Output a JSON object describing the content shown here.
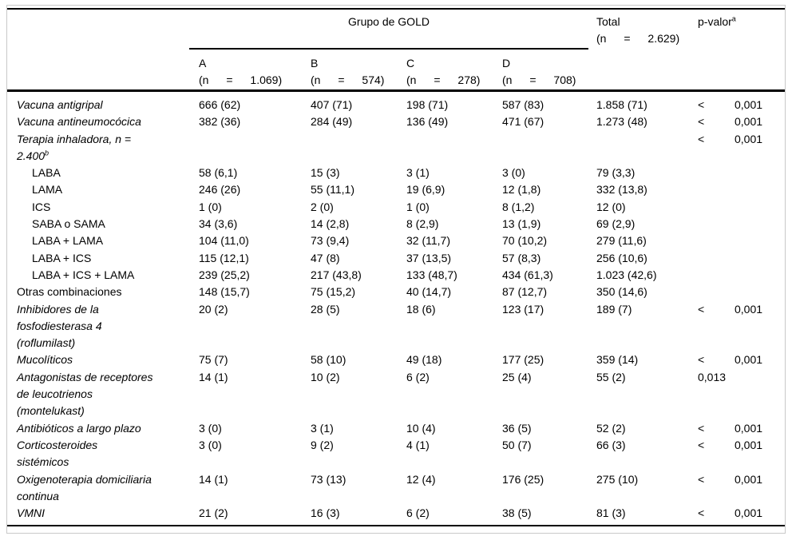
{
  "table": {
    "header": {
      "group_title": "Grupo de GOLD",
      "total_label": "Total",
      "total_n": "(n = 2.629)",
      "p_label": "p-valor",
      "p_sup": "a",
      "group_columns": [
        {
          "letter": "A",
          "n": "(n = 1.069)"
        },
        {
          "letter": "B",
          "n": "(n = 574)"
        },
        {
          "letter": "C",
          "n": "(n = 278)"
        },
        {
          "letter": "D",
          "n": "(n = 708)"
        }
      ]
    },
    "rows": [
      {
        "label": "Vacuna antigripal",
        "sup": "",
        "style": "italic",
        "group_a": "666 (62)",
        "group_b": "407 (71)",
        "group_c": "198 (71)",
        "group_d": "587 (83)",
        "total": "1.858 (71)",
        "p_sign": "<",
        "p_value": "0,001"
      },
      {
        "label": "Vacuna antineumocócica",
        "sup": "",
        "style": "italic",
        "group_a": "382 (36)",
        "group_b": "284 (49)",
        "group_c": "136 (49)",
        "group_d": "471 (67)",
        "total": "1.273 (48)",
        "p_sign": "<",
        "p_value": "0,001"
      },
      {
        "label": "Terapia inhaladora, n =\n2.400",
        "sup": "b",
        "style": "italic",
        "group_a": "",
        "group_b": "",
        "group_c": "",
        "group_d": "",
        "total": "",
        "p_sign": "<",
        "p_value": "0,001"
      },
      {
        "label": "LABA",
        "sup": "",
        "style": "indent",
        "group_a": "58 (6,1)",
        "group_b": "15 (3)",
        "group_c": "3 (1)",
        "group_d": "3 (0)",
        "total": "79 (3,3)",
        "p_sign": "",
        "p_value": ""
      },
      {
        "label": "LAMA",
        "sup": "",
        "style": "indent",
        "group_a": "246 (26)",
        "group_b": "55 (11,1)",
        "group_c": "19 (6,9)",
        "group_d": "12 (1,8)",
        "total": "332 (13,8)",
        "p_sign": "",
        "p_value": ""
      },
      {
        "label": "ICS",
        "sup": "",
        "style": "indent",
        "group_a": "1 (0)",
        "group_b": "2 (0)",
        "group_c": "1 (0)",
        "group_d": "8 (1,2)",
        "total": "12 (0)",
        "p_sign": "",
        "p_value": ""
      },
      {
        "label": "SABA o SAMA",
        "sup": "",
        "style": "indent",
        "group_a": "34 (3,6)",
        "group_b": "14 (2,8)",
        "group_c": "8 (2,9)",
        "group_d": "13 (1,9)",
        "total": "69 (2,9)",
        "p_sign": "",
        "p_value": ""
      },
      {
        "label": "LABA + LAMA",
        "sup": "",
        "style": "indent",
        "group_a": "104 (11,0)",
        "group_b": "73 (9,4)",
        "group_c": "32 (11,7)",
        "group_d": "70 (10,2)",
        "total": "279 (11,6)",
        "p_sign": "",
        "p_value": ""
      },
      {
        "label": "LABA + ICS",
        "sup": "",
        "style": "indent",
        "group_a": "115 (12,1)",
        "group_b": "47 (8)",
        "group_c": "37 (13,5)",
        "group_d": "57 (8,3)",
        "total": "256 (10,6)",
        "p_sign": "",
        "p_value": ""
      },
      {
        "label": "LABA + ICS + LAMA",
        "sup": "",
        "style": "indent",
        "group_a": "239 (25,2)",
        "group_b": "217 (43,8)",
        "group_c": "133 (48,7)",
        "group_d": "434 (61,3)",
        "total": "1.023 (42,6)",
        "p_sign": "",
        "p_value": ""
      },
      {
        "label": "Otras combinaciones",
        "sup": "",
        "style": "plain",
        "group_a": "148 (15,7)",
        "group_b": "75 (15,2)",
        "group_c": "40 (14,7)",
        "group_d": "87 (12,7)",
        "total": "350 (14,6)",
        "p_sign": "",
        "p_value": ""
      },
      {
        "label": "Inhibidores de la\nfosfodiesterasa 4\n(roflumilast)",
        "sup": "",
        "style": "italic",
        "group_a": "20 (2)",
        "group_b": "28 (5)",
        "group_c": "18 (6)",
        "group_d": "123 (17)",
        "total": "189 (7)",
        "p_sign": "<",
        "p_value": "0,001"
      },
      {
        "label": "Mucolíticos",
        "sup": "",
        "style": "italic",
        "group_a": "75 (7)",
        "group_b": "58 (10)",
        "group_c": "49 (18)",
        "group_d": "177 (25)",
        "total": "359 (14)",
        "p_sign": "<",
        "p_value": "0,001"
      },
      {
        "label": "Antagonistas de receptores\nde leucotrienos\n(montelukast)",
        "sup": "",
        "style": "italic",
        "group_a": "14 (1)",
        "group_b": "10 (2)",
        "group_c": "6 (2)",
        "group_d": "25 (4)",
        "total": "55 (2)",
        "p_sign": "",
        "p_value": "0,013"
      },
      {
        "label": "Antibióticos a largo plazo",
        "sup": "",
        "style": "italic",
        "group_a": "3 (0)",
        "group_b": "3 (1)",
        "group_c": "10 (4)",
        "group_d": "36 (5)",
        "total": "52 (2)",
        "p_sign": "<",
        "p_value": "0,001"
      },
      {
        "label": "Corticosteroides\nsistémicos",
        "sup": "",
        "style": "italic",
        "group_a": "3 (0)",
        "group_b": "9 (2)",
        "group_c": "4 (1)",
        "group_d": "50 (7)",
        "total": "66 (3)",
        "p_sign": "<",
        "p_value": "0,001"
      },
      {
        "label": "Oxigenoterapia domiciliaria\ncontinua",
        "sup": "",
        "style": "italic",
        "group_a": "14 (1)",
        "group_b": "73 (13)",
        "group_c": "12 (4)",
        "group_d": "176 (25)",
        "total": "275 (10)",
        "p_sign": "<",
        "p_value": "0,001"
      },
      {
        "label": "VMNI",
        "sup": "",
        "style": "italic",
        "group_a": "21 (2)",
        "group_b": "16 (3)",
        "group_c": "6 (2)",
        "group_d": "38 (5)",
        "total": "81 (3)",
        "p_sign": "<",
        "p_value": "0,001"
      }
    ],
    "colors": {
      "rule": "#000000",
      "outer_border": "#c9c9c9",
      "background": "#ffffff"
    }
  }
}
